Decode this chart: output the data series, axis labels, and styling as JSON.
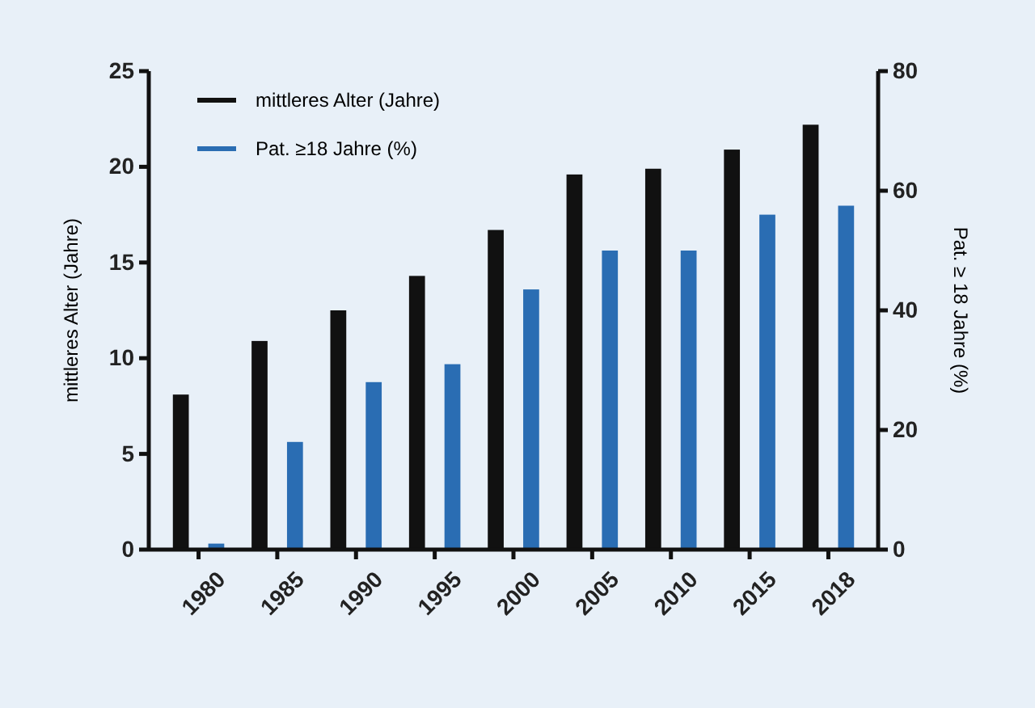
{
  "chart_data": {
    "type": "bar",
    "categories": [
      "1980",
      "1985",
      "1990",
      "1995",
      "2000",
      "2005",
      "2010",
      "2015",
      "2018"
    ],
    "series": [
      {
        "name": "mittleres Alter (Jahre)",
        "color": "#111111",
        "values": [
          8.1,
          10.9,
          12.5,
          14.3,
          16.7,
          19.6,
          19.9,
          20.9,
          22.2
        ]
      },
      {
        "name": "Pat. ≥18 Jahre (%)",
        "color": "#2a6db3",
        "axis": "y2",
        "values": [
          1,
          18,
          28,
          31,
          43.5,
          50,
          50,
          56,
          57.5
        ]
      }
    ],
    "ylabel": "mittleres Alter (Jahre)",
    "y2label": "Pat. ≥ 18 Jahre (%)",
    "ylim": [
      0,
      25
    ],
    "yticks": [
      0,
      5,
      10,
      15,
      20,
      25
    ],
    "y2lim": [
      0,
      80
    ],
    "y2ticks": [
      0,
      20,
      40,
      60,
      80
    ],
    "legend": "top left"
  }
}
